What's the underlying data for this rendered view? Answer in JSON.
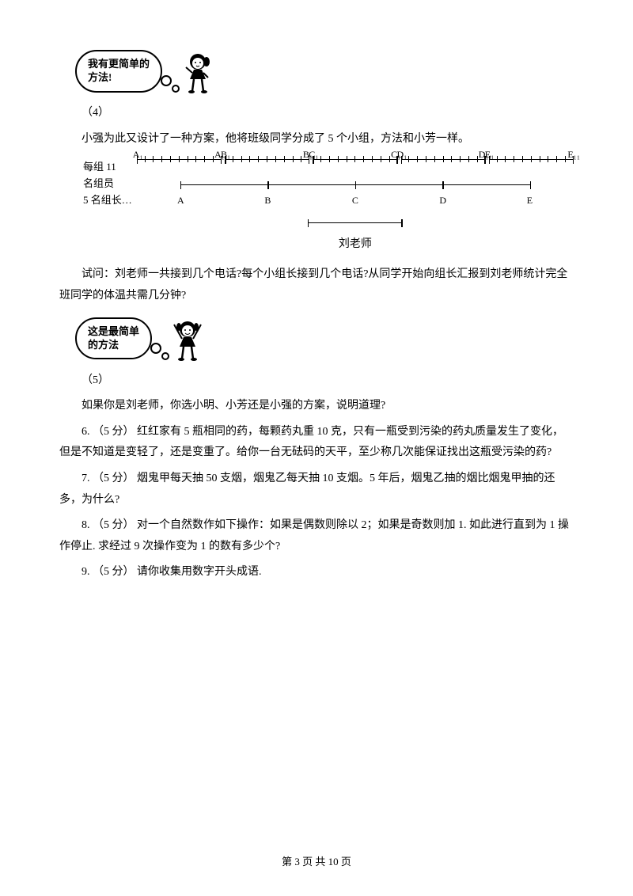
{
  "bubble1": {
    "line1": "我有更简单的",
    "line2": "方法!"
  },
  "bubble2": {
    "line1": "这是最简单",
    "line2": "的方法"
  },
  "items": {
    "p4_num": "（4）",
    "p4_text": "小强为此又设计了一种方案，他将班级同学分成了 5 个小组，方法和小芳一样。",
    "p4_q": "试问：刘老师一共接到几个电话?每个小组长接到几个电话?从同学开始向组长汇报到刘老师统计完全班同学的体温共需几分钟?",
    "p5_num": "（5）",
    "p5_text": "如果你是刘老师，你选小明、小芳还是小强的方案，说明道理?",
    "q6": "6. （5 分）  红红家有 5 瓶相同的药，每颗药丸重 10 克，只有一瓶受到污染的药丸质量发生了变化，但是不知道是变轻了，还是变重了。给你一台无砝码的天平，至少称几次能保证找出这瓶受污染的药?",
    "q7": "7. （5 分）  烟鬼甲每天抽 50 支烟，烟鬼乙每天抽 10 支烟。5 年后，烟鬼乙抽的烟比烟鬼甲抽的还多，为什么?",
    "q8": "8. （5 分）  对一个自然数作如下操作：如果是偶数则除以 2；如果是奇数则加 1.  如此进行直到为 1 操作停止.  求经过 9 次操作变为 1 的数有多少个?",
    "q9": "9. （5 分）  请你收集用数字开头成语."
  },
  "diagram": {
    "row1_label": "每组 11",
    "row2_label": "名组员",
    "row3_label": "5 名组长…",
    "teacher": "刘老师",
    "segs": [
      {
        "l": "A₁",
        "r": "A₁₁"
      },
      {
        "l": "B₁",
        "r": "B₁₁"
      },
      {
        "l": "C₁",
        "r": "C₁₁"
      },
      {
        "l": "D₁",
        "r": "D₁₁"
      },
      {
        "l": "E₁",
        "r": "E₁₁"
      }
    ],
    "leaders": [
      "A",
      "B",
      "C",
      "D",
      "E"
    ]
  },
  "footer": {
    "text": "第 3 页 共 10 页"
  }
}
